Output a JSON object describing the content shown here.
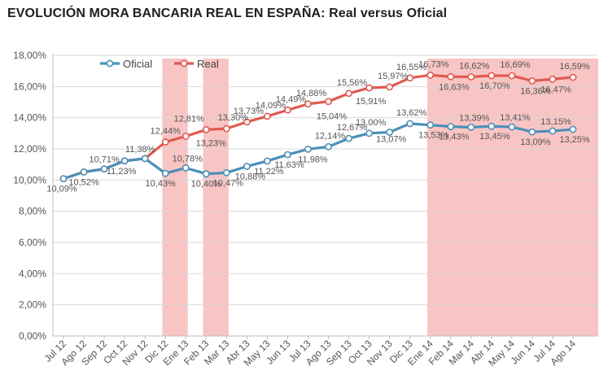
{
  "title": "EVOLUCIÓN MORA BANCARIA REAL EN ESPAÑA: Real versus Oficial",
  "chart_data": {
    "type": "line",
    "title": "EVOLUCIÓN MORA BANCARIA REAL EN ESPAÑA: Real versus Oficial",
    "xlabel": "",
    "ylabel": "",
    "ylim": [
      0,
      18
    ],
    "ytick_labels": [
      "0,00%",
      "2,00%",
      "4,00%",
      "6,00%",
      "8,00%",
      "10,00%",
      "12,00%",
      "14,00%",
      "16,00%",
      "18,00%"
    ],
    "grid": true,
    "legend_position": "top-left",
    "categories": [
      "Jul 12",
      "Ago 12",
      "Sep 12",
      "Oct 12",
      "Nov 12",
      "Dic 12",
      "Ene 13",
      "Feb 13",
      "Mar 13",
      "Abr 13",
      "May 13",
      "Jun 13",
      "Jul 13",
      "Ago 13",
      "Sep 13",
      "Oct 13",
      "Nov 13",
      "Dic 13",
      "Ene 14",
      "Feb 14",
      "Mar 14",
      "Abr 14",
      "May 14",
      "Jun 14",
      "Jul 14",
      "Ago 14"
    ],
    "series": [
      {
        "name": "Oficial",
        "color": "#4a90b8",
        "values": [
          10.09,
          10.52,
          10.71,
          11.23,
          11.38,
          10.43,
          10.78,
          10.4,
          10.47,
          10.88,
          11.22,
          11.63,
          11.98,
          12.14,
          12.67,
          13.0,
          13.07,
          13.62,
          13.53,
          13.43,
          13.39,
          13.45,
          13.41,
          13.09,
          13.15,
          13.25
        ],
        "labels": [
          "10,09%",
          "10,52%",
          "10,71%",
          "11,23%",
          "11,38%",
          "10,43%",
          "10,78%",
          "10,40%",
          "10,47%",
          "10,88%",
          "11,22%",
          "11,63%",
          "11,98%",
          "12,14%",
          "12,67%",
          "13,00%",
          "13,07%",
          "13,62%",
          "13,53%",
          "13,43%",
          "13,39%",
          "13,45%",
          "13,41%",
          "13,09%",
          "13,15%",
          "13,25%"
        ]
      },
      {
        "name": "Real",
        "color": "#e05a50",
        "values": [
          10.09,
          10.52,
          10.71,
          11.23,
          11.38,
          12.44,
          12.81,
          13.23,
          13.3,
          13.73,
          14.09,
          14.49,
          14.88,
          15.04,
          15.56,
          15.91,
          15.97,
          16.55,
          16.73,
          16.63,
          16.62,
          16.7,
          16.69,
          16.36,
          16.47,
          16.59
        ],
        "labels": [
          "",
          "",
          "",
          "",
          "",
          "12,44%",
          "12,81%",
          "13,23%",
          "13,30%",
          "13,73%",
          "14,09%",
          "14,49%",
          "14,88%",
          "15,04%",
          "15,56%",
          "15,91%",
          "15,97%",
          "16,55%",
          "16,73%",
          "16,63%",
          "16,62%",
          "16,70%",
          "16,69%",
          "16,36%",
          "16,47%",
          "16,59%"
        ]
      }
    ],
    "highlight_bands": [
      {
        "from": "Dic 12",
        "to": "Ene 13"
      },
      {
        "from": "Feb 13",
        "to": "Mar 13"
      },
      {
        "from": "Ene 14",
        "to": "Ago 14"
      }
    ],
    "band_color": "#f8c4c4"
  }
}
